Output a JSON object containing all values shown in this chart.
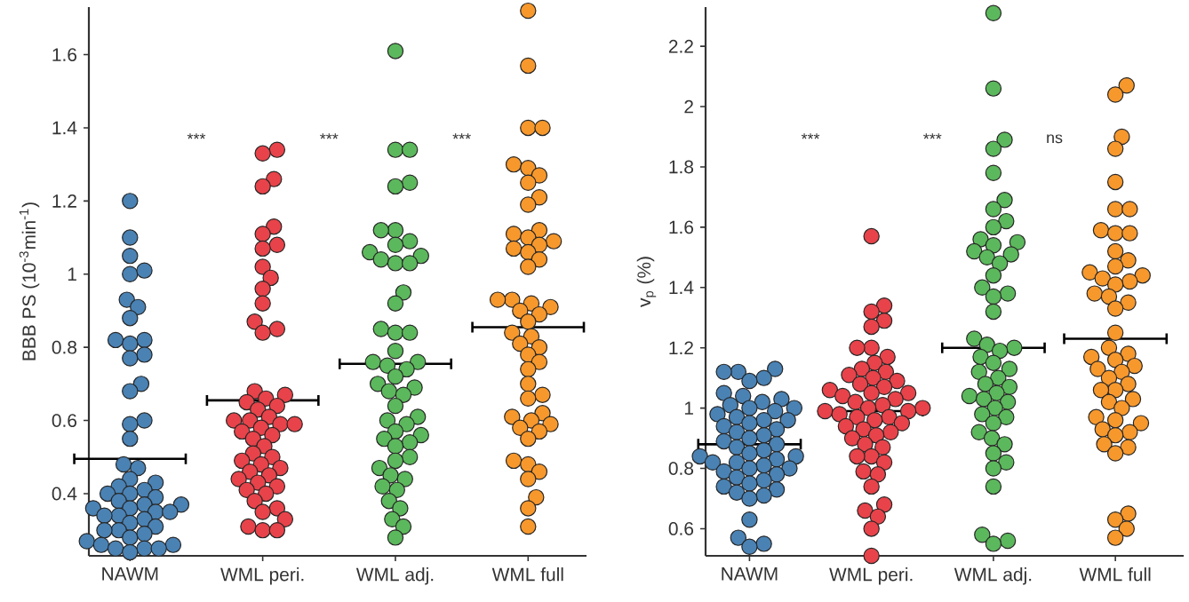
{
  "chart_data": [
    {
      "type": "scatter",
      "ylabel": "BBB PS (10$^{-3}$min$^{-1}$)",
      "categories": [
        "NAWM",
        "WML peri.",
        "WML adj.",
        "WML full"
      ],
      "ylim": [
        0.23,
        1.73
      ],
      "yticks": [
        0.4,
        0.6,
        0.8,
        1,
        1.2,
        1.4,
        1.6
      ],
      "marker": "circle",
      "annotations": [
        "***",
        "***",
        "***"
      ],
      "series": [
        {
          "color": "#4a82b4",
          "x": [
            "NAWM",
            "NAWM",
            "NAWM",
            "NAWM",
            "NAWM",
            "NAWM",
            "NAWM",
            "NAWM",
            "NAWM",
            "NAWM",
            "NAWM",
            "NAWM",
            "NAWM",
            "NAWM",
            "NAWM",
            "NAWM",
            "NAWM",
            "NAWM",
            "NAWM",
            "NAWM",
            "NAWM",
            "NAWM",
            "NAWM",
            "NAWM",
            "NAWM",
            "NAWM",
            "NAWM",
            "NAWM",
            "NAWM",
            "NAWM",
            "NAWM",
            "NAWM",
            "NAWM",
            "NAWM",
            "NAWM",
            "NAWM",
            "NAWM",
            "NAWM",
            "NAWM",
            "NAWM",
            "NAWM",
            "NAWM",
            "NAWM",
            "NAWM",
            "NAWM",
            "NAWM",
            "NAWM",
            "NAWM",
            "NAWM",
            "NAWM"
          ],
          "values": [
            1.2,
            1.1,
            1.05,
            1.0,
            1.01,
            0.93,
            0.91,
            0.88,
            0.82,
            0.82,
            0.81,
            0.78,
            0.77,
            0.7,
            0.68,
            0.6,
            0.59,
            0.55,
            0.48,
            0.47,
            0.44,
            0.43,
            0.42,
            0.41,
            0.4,
            0.4,
            0.39,
            0.38,
            0.37,
            0.37,
            0.36,
            0.36,
            0.35,
            0.35,
            0.34,
            0.34,
            0.33,
            0.32,
            0.31,
            0.3,
            0.3,
            0.29,
            0.28,
            0.27,
            0.26,
            0.26,
            0.25,
            0.25,
            0.24,
            0.25
          ]
        },
        {
          "color": "#e8434a",
          "x": [
            "WML peri.",
            "WML peri.",
            "WML peri.",
            "WML peri.",
            "WML peri.",
            "WML peri.",
            "WML peri.",
            "WML peri.",
            "WML peri.",
            "WML peri.",
            "WML peri.",
            "WML peri.",
            "WML peri.",
            "WML peri.",
            "WML peri.",
            "WML peri.",
            "WML peri.",
            "WML peri.",
            "WML peri.",
            "WML peri.",
            "WML peri.",
            "WML peri.",
            "WML peri.",
            "WML peri.",
            "WML peri.",
            "WML peri.",
            "WML peri.",
            "WML peri.",
            "WML peri.",
            "WML peri.",
            "WML peri.",
            "WML peri.",
            "WML peri.",
            "WML peri.",
            "WML peri.",
            "WML peri.",
            "WML peri.",
            "WML peri.",
            "WML peri.",
            "WML peri.",
            "WML peri.",
            "WML peri.",
            "WML peri.",
            "WML peri.",
            "WML peri.",
            "WML peri.",
            "WML peri.",
            "WML peri.",
            "WML peri.",
            "WML peri."
          ],
          "values": [
            1.34,
            1.33,
            1.26,
            1.24,
            1.13,
            1.11,
            1.08,
            1.07,
            1.02,
            0.99,
            0.96,
            0.92,
            0.87,
            0.85,
            0.84,
            0.68,
            0.67,
            0.66,
            0.65,
            0.64,
            0.63,
            0.61,
            0.6,
            0.6,
            0.59,
            0.59,
            0.58,
            0.57,
            0.56,
            0.55,
            0.53,
            0.51,
            0.5,
            0.49,
            0.48,
            0.47,
            0.46,
            0.45,
            0.44,
            0.43,
            0.42,
            0.41,
            0.4,
            0.38,
            0.36,
            0.35,
            0.33,
            0.31,
            0.3,
            0.3
          ]
        },
        {
          "color": "#5cb85c",
          "x": [
            "WML adj.",
            "WML adj.",
            "WML adj.",
            "WML adj.",
            "WML adj.",
            "WML adj.",
            "WML adj.",
            "WML adj.",
            "WML adj.",
            "WML adj.",
            "WML adj.",
            "WML adj.",
            "WML adj.",
            "WML adj.",
            "WML adj.",
            "WML adj.",
            "WML adj.",
            "WML adj.",
            "WML adj.",
            "WML adj.",
            "WML adj.",
            "WML adj.",
            "WML adj.",
            "WML adj.",
            "WML adj.",
            "WML adj.",
            "WML adj.",
            "WML adj.",
            "WML adj.",
            "WML adj.",
            "WML adj.",
            "WML adj.",
            "WML adj.",
            "WML adj.",
            "WML adj.",
            "WML adj.",
            "WML adj.",
            "WML adj.",
            "WML adj.",
            "WML adj.",
            "WML adj.",
            "WML adj.",
            "WML adj.",
            "WML adj.",
            "WML adj.",
            "WML adj.",
            "WML adj.",
            "WML adj.",
            "WML adj.",
            "WML adj."
          ],
          "values": [
            1.61,
            1.34,
            1.34,
            1.25,
            1.24,
            1.12,
            1.12,
            1.09,
            1.08,
            1.06,
            1.05,
            1.04,
            1.03,
            1.03,
            0.95,
            0.92,
            0.85,
            0.84,
            0.84,
            0.79,
            0.76,
            0.76,
            0.75,
            0.74,
            0.72,
            0.7,
            0.69,
            0.68,
            0.67,
            0.64,
            0.61,
            0.6,
            0.59,
            0.57,
            0.56,
            0.55,
            0.54,
            0.53,
            0.5,
            0.49,
            0.47,
            0.45,
            0.44,
            0.42,
            0.41,
            0.38,
            0.36,
            0.33,
            0.31,
            0.28
          ]
        },
        {
          "color": "#f7982c",
          "x": [
            "WML full",
            "WML full",
            "WML full",
            "WML full",
            "WML full",
            "WML full",
            "WML full",
            "WML full",
            "WML full",
            "WML full",
            "WML full",
            "WML full",
            "WML full",
            "WML full",
            "WML full",
            "WML full",
            "WML full",
            "WML full",
            "WML full",
            "WML full",
            "WML full",
            "WML full",
            "WML full",
            "WML full",
            "WML full",
            "WML full",
            "WML full",
            "WML full",
            "WML full",
            "WML full",
            "WML full",
            "WML full",
            "WML full",
            "WML full",
            "WML full",
            "WML full",
            "WML full",
            "WML full",
            "WML full",
            "WML full",
            "WML full",
            "WML full",
            "WML full",
            "WML full",
            "WML full",
            "WML full",
            "WML full",
            "WML full",
            "WML full",
            "WML full"
          ],
          "values": [
            1.72,
            1.57,
            1.4,
            1.4,
            1.3,
            1.29,
            1.27,
            1.25,
            1.21,
            1.19,
            1.12,
            1.11,
            1.1,
            1.09,
            1.08,
            1.07,
            1.06,
            1.04,
            1.02,
            0.93,
            0.93,
            0.92,
            0.91,
            0.9,
            0.89,
            0.87,
            0.84,
            0.83,
            0.81,
            0.8,
            0.78,
            0.76,
            0.74,
            0.7,
            0.67,
            0.66,
            0.62,
            0.61,
            0.6,
            0.59,
            0.58,
            0.57,
            0.55,
            0.49,
            0.48,
            0.46,
            0.44,
            0.39,
            0.36,
            0.31
          ]
        }
      ],
      "ref_lines": [
        {
          "axis": "y",
          "value": 0.495,
          "color": "#000000"
        },
        {
          "axis": "y",
          "value": 0.655,
          "color": "#000000"
        },
        {
          "axis": "y",
          "value": 0.755,
          "color": "#000000"
        },
        {
          "axis": "y",
          "value": 0.855,
          "color": "#000000"
        }
      ]
    },
    {
      "type": "scatter",
      "ylabel": "v$_{p}$ (%)",
      "categories": [
        "NAWM",
        "WML peri.",
        "WML adj.",
        "WML full"
      ],
      "ylim": [
        0.51,
        2.33
      ],
      "yticks": [
        0.6,
        0.8,
        1,
        1.2,
        1.4,
        1.6,
        1.8,
        2,
        2.2
      ],
      "marker": "circle",
      "annotations": [
        "***",
        "***",
        "ns"
      ],
      "series": [
        {
          "color": "#4a82b4",
          "x": [
            "NAWM",
            "NAWM",
            "NAWM",
            "NAWM",
            "NAWM",
            "NAWM",
            "NAWM",
            "NAWM",
            "NAWM",
            "NAWM",
            "NAWM",
            "NAWM",
            "NAWM",
            "NAWM",
            "NAWM",
            "NAWM",
            "NAWM",
            "NAWM",
            "NAWM",
            "NAWM",
            "NAWM",
            "NAWM",
            "NAWM",
            "NAWM",
            "NAWM",
            "NAWM",
            "NAWM",
            "NAWM",
            "NAWM",
            "NAWM",
            "NAWM",
            "NAWM",
            "NAWM",
            "NAWM",
            "NAWM",
            "NAWM",
            "NAWM",
            "NAWM",
            "NAWM",
            "NAWM",
            "NAWM",
            "NAWM",
            "NAWM",
            "NAWM",
            "NAWM",
            "NAWM",
            "NAWM",
            "NAWM",
            "NAWM",
            "NAWM"
          ],
          "values": [
            1.13,
            1.12,
            1.12,
            1.1,
            1.09,
            1.05,
            1.04,
            1.03,
            1.02,
            1.01,
            1.0,
            1.0,
            0.99,
            0.98,
            0.97,
            0.96,
            0.96,
            0.95,
            0.94,
            0.93,
            0.92,
            0.91,
            0.9,
            0.89,
            0.88,
            0.87,
            0.86,
            0.85,
            0.84,
            0.84,
            0.83,
            0.82,
            0.82,
            0.81,
            0.8,
            0.8,
            0.79,
            0.78,
            0.77,
            0.76,
            0.75,
            0.74,
            0.73,
            0.72,
            0.71,
            0.7,
            0.63,
            0.57,
            0.55,
            0.54
          ]
        },
        {
          "color": "#e8434a",
          "x": [
            "WML peri.",
            "WML peri.",
            "WML peri.",
            "WML peri.",
            "WML peri.",
            "WML peri.",
            "WML peri.",
            "WML peri.",
            "WML peri.",
            "WML peri.",
            "WML peri.",
            "WML peri.",
            "WML peri.",
            "WML peri.",
            "WML peri.",
            "WML peri.",
            "WML peri.",
            "WML peri.",
            "WML peri.",
            "WML peri.",
            "WML peri.",
            "WML peri.",
            "WML peri.",
            "WML peri.",
            "WML peri.",
            "WML peri.",
            "WML peri.",
            "WML peri.",
            "WML peri.",
            "WML peri.",
            "WML peri.",
            "WML peri.",
            "WML peri.",
            "WML peri.",
            "WML peri.",
            "WML peri.",
            "WML peri.",
            "WML peri.",
            "WML peri.",
            "WML peri.",
            "WML peri.",
            "WML peri.",
            "WML peri.",
            "WML peri.",
            "WML peri.",
            "WML peri.",
            "WML peri.",
            "WML peri.",
            "WML peri.",
            "WML peri."
          ],
          "values": [
            1.57,
            1.34,
            1.32,
            1.29,
            1.27,
            1.2,
            1.2,
            1.17,
            1.15,
            1.13,
            1.12,
            1.11,
            1.1,
            1.09,
            1.08,
            1.07,
            1.06,
            1.05,
            1.05,
            1.04,
            1.03,
            1.02,
            1.01,
            1.0,
            1.0,
            0.99,
            0.99,
            0.98,
            0.97,
            0.97,
            0.96,
            0.95,
            0.94,
            0.93,
            0.92,
            0.91,
            0.9,
            0.88,
            0.87,
            0.84,
            0.84,
            0.82,
            0.79,
            0.78,
            0.74,
            0.68,
            0.66,
            0.64,
            0.6,
            0.51
          ]
        },
        {
          "color": "#5cb85c",
          "x": [
            "WML adj.",
            "WML adj.",
            "WML adj.",
            "WML adj.",
            "WML adj.",
            "WML adj.",
            "WML adj.",
            "WML adj.",
            "WML adj.",
            "WML adj.",
            "WML adj.",
            "WML adj.",
            "WML adj.",
            "WML adj.",
            "WML adj.",
            "WML adj.",
            "WML adj.",
            "WML adj.",
            "WML adj.",
            "WML adj.",
            "WML adj.",
            "WML adj.",
            "WML adj.",
            "WML adj.",
            "WML adj.",
            "WML adj.",
            "WML adj.",
            "WML adj.",
            "WML adj.",
            "WML adj.",
            "WML adj.",
            "WML adj.",
            "WML adj.",
            "WML adj.",
            "WML adj.",
            "WML adj.",
            "WML adj.",
            "WML adj.",
            "WML adj.",
            "WML adj.",
            "WML adj.",
            "WML adj.",
            "WML adj.",
            "WML adj.",
            "WML adj.",
            "WML adj.",
            "WML adj.",
            "WML adj.",
            "WML adj.",
            "WML adj."
          ],
          "values": [
            2.31,
            2.06,
            1.89,
            1.86,
            1.78,
            1.69,
            1.66,
            1.62,
            1.6,
            1.56,
            1.55,
            1.54,
            1.52,
            1.51,
            1.5,
            1.48,
            1.44,
            1.4,
            1.38,
            1.37,
            1.32,
            1.23,
            1.21,
            1.2,
            1.19,
            1.17,
            1.15,
            1.13,
            1.12,
            1.1,
            1.08,
            1.07,
            1.05,
            1.04,
            1.03,
            1.02,
            1.0,
            0.98,
            0.97,
            0.95,
            0.92,
            0.9,
            0.88,
            0.85,
            0.82,
            0.8,
            0.74,
            0.58,
            0.56,
            0.55
          ]
        },
        {
          "color": "#f7982c",
          "x": [
            "WML full",
            "WML full",
            "WML full",
            "WML full",
            "WML full",
            "WML full",
            "WML full",
            "WML full",
            "WML full",
            "WML full",
            "WML full",
            "WML full",
            "WML full",
            "WML full",
            "WML full",
            "WML full",
            "WML full",
            "WML full",
            "WML full",
            "WML full",
            "WML full",
            "WML full",
            "WML full",
            "WML full",
            "WML full",
            "WML full",
            "WML full",
            "WML full",
            "WML full",
            "WML full",
            "WML full",
            "WML full",
            "WML full",
            "WML full",
            "WML full",
            "WML full",
            "WML full",
            "WML full",
            "WML full",
            "WML full",
            "WML full",
            "WML full",
            "WML full",
            "WML full",
            "WML full",
            "WML full",
            "WML full",
            "WML full",
            "WML full",
            "WML full"
          ],
          "values": [
            2.07,
            2.04,
            1.9,
            1.86,
            1.75,
            1.66,
            1.66,
            1.59,
            1.58,
            1.58,
            1.52,
            1.49,
            1.47,
            1.45,
            1.44,
            1.43,
            1.42,
            1.41,
            1.38,
            1.37,
            1.35,
            1.33,
            1.25,
            1.2,
            1.18,
            1.17,
            1.16,
            1.14,
            1.13,
            1.12,
            1.1,
            1.08,
            1.06,
            1.06,
            1.03,
            1.02,
            1.0,
            0.97,
            0.96,
            0.95,
            0.93,
            0.92,
            0.91,
            0.88,
            0.87,
            0.85,
            0.65,
            0.63,
            0.6,
            0.57
          ]
        }
      ],
      "ref_lines": [
        {
          "axis": "y",
          "value": 0.88,
          "color": "#000000"
        },
        {
          "axis": "y",
          "value": 0.99,
          "color": "#000000"
        },
        {
          "axis": "y",
          "value": 1.2,
          "color": "#000000"
        },
        {
          "axis": "y",
          "value": 1.23,
          "color": "#000000"
        }
      ]
    }
  ]
}
